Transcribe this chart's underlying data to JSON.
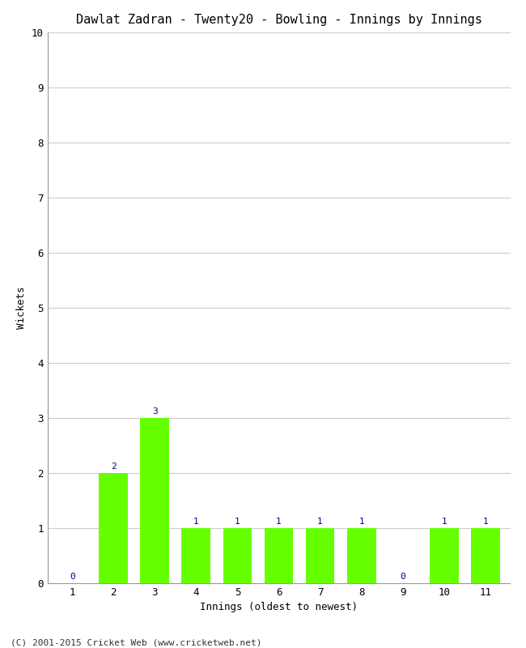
{
  "title": "Dawlat Zadran - Twenty20 - Bowling - Innings by Innings",
  "xlabel": "Innings (oldest to newest)",
  "ylabel": "Wickets",
  "innings": [
    1,
    2,
    3,
    4,
    5,
    6,
    7,
    8,
    9,
    10,
    11
  ],
  "wickets": [
    0,
    2,
    3,
    1,
    1,
    1,
    1,
    1,
    0,
    1,
    1
  ],
  "bar_color": "#66ff00",
  "label_color": "#00008B",
  "ylim": [
    0,
    10
  ],
  "yticks": [
    0,
    1,
    2,
    3,
    4,
    5,
    6,
    7,
    8,
    9,
    10
  ],
  "grid_color": "#cccccc",
  "background_color": "#ffffff",
  "title_fontsize": 11,
  "label_fontsize": 9,
  "tick_fontsize": 9,
  "annotation_fontsize": 8,
  "footer": "(C) 2001-2015 Cricket Web (www.cricketweb.net)"
}
